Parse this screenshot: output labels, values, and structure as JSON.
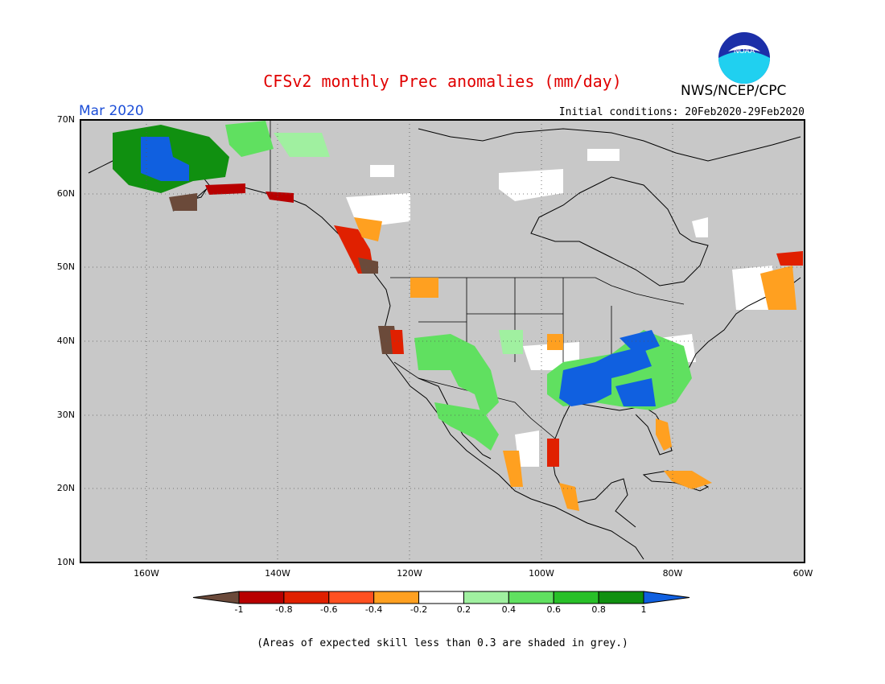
{
  "header": {
    "title": "CFSv2 monthly Prec anomalies (mm/day)",
    "org": "NWS/NCEP/CPC",
    "month": "Mar 2020",
    "initial_conditions": "Initial conditions: 20Feb2020-29Feb2020",
    "logo_text": "NOAA"
  },
  "map": {
    "lat_labels": [
      "70N",
      "60N",
      "50N",
      "40N",
      "30N",
      "20N",
      "10N"
    ],
    "lon_labels": [
      "160W",
      "140W",
      "120W",
      "100W",
      "80W",
      "60W"
    ],
    "lat_range": [
      10,
      70
    ],
    "lon_range": [
      -170,
      -60
    ],
    "grid_lines": "dotted",
    "ocean_shade": "#c8c8c8"
  },
  "colorbar": {
    "labels": [
      "-1",
      "-0.8",
      "-0.6",
      "-0.4",
      "-0.2",
      "0.2",
      "0.4",
      "0.6",
      "0.8",
      "1"
    ],
    "colors": [
      "#6b4a3a",
      "#b80000",
      "#e02000",
      "#ff5020",
      "#ffa020",
      "#ffffff",
      "#a0f0a0",
      "#60e060",
      "#28c028",
      "#109010",
      "#1060e0"
    ]
  },
  "note": "(Areas of expected skill less than 0.3 are shaded in grey.)"
}
